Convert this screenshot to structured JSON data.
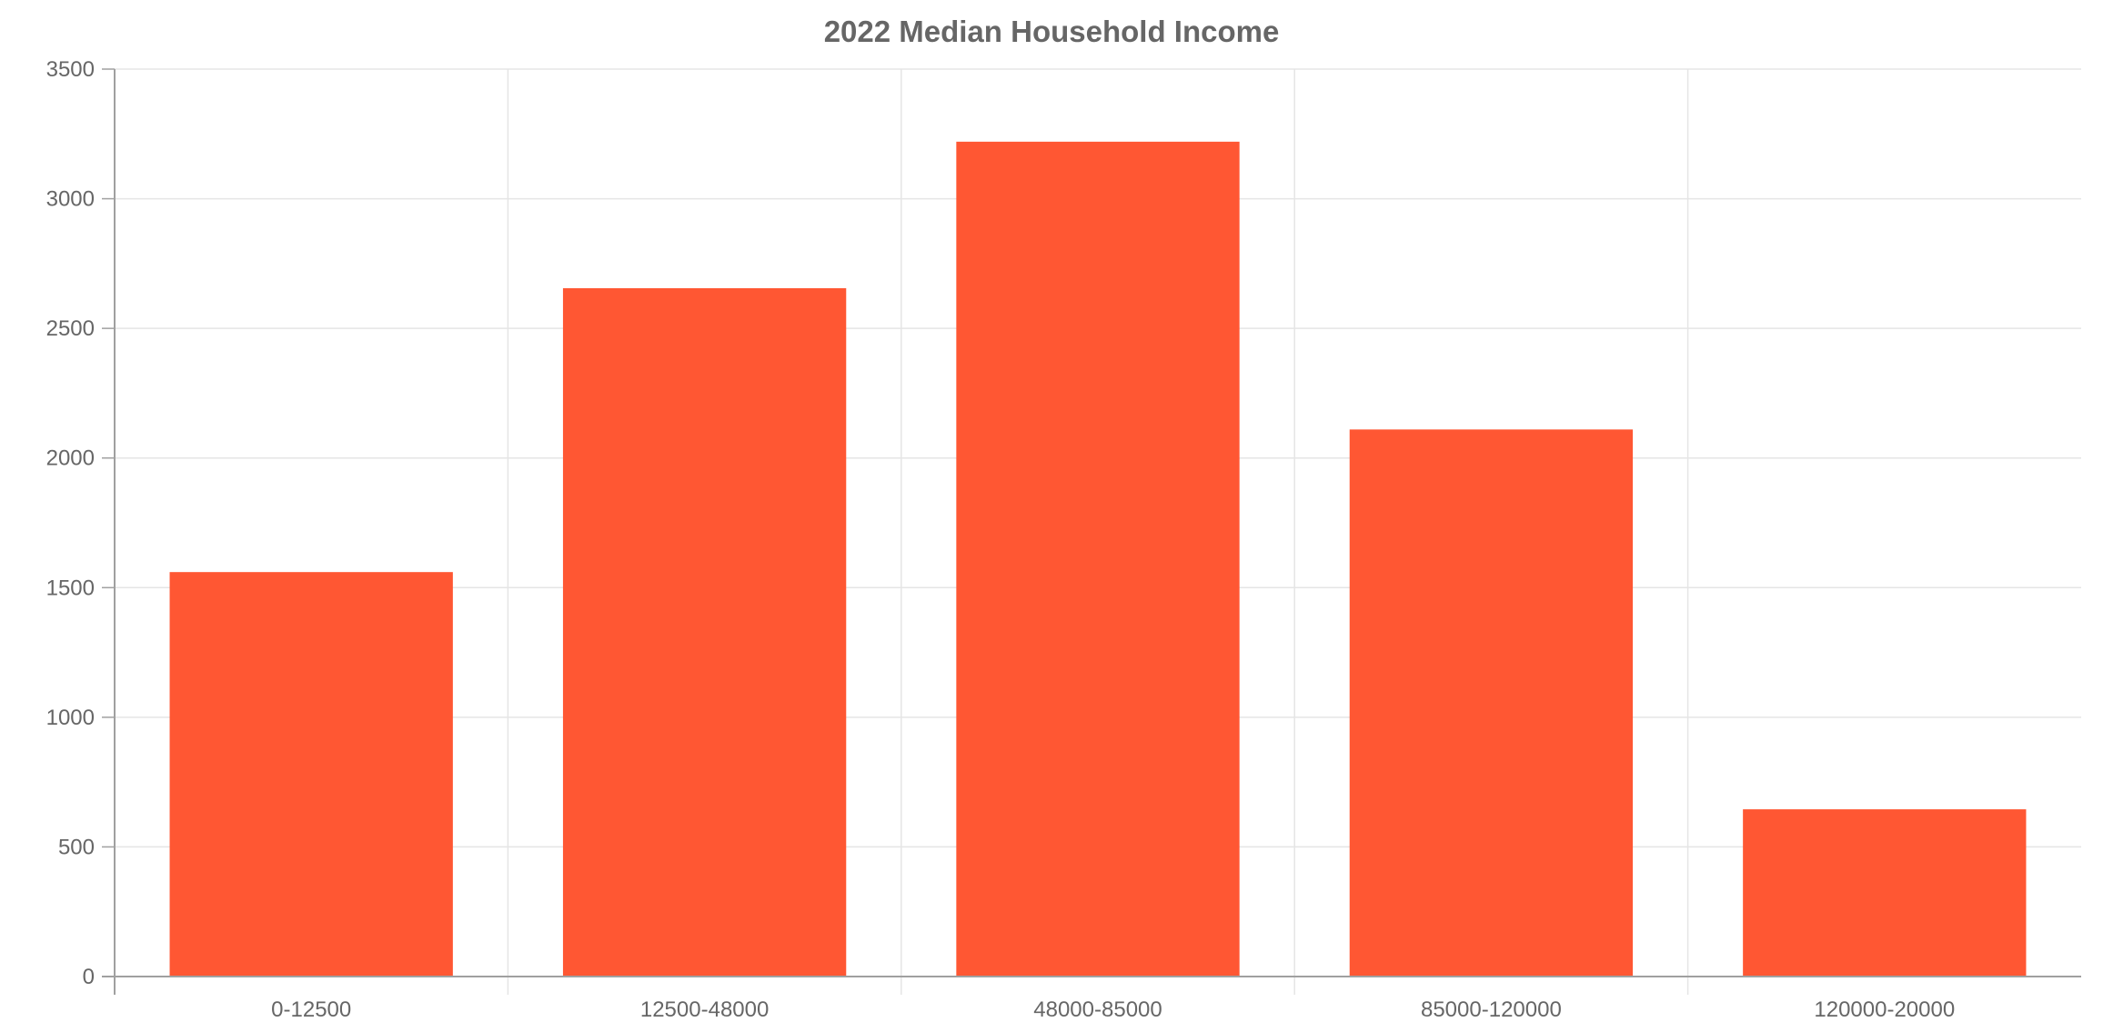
{
  "chart_data": {
    "type": "bar",
    "title": "2022 Median Household Income",
    "xlabel": "",
    "ylabel": "",
    "categories": [
      "0-12500",
      "12500-48000",
      "48000-85000",
      "85000-120000",
      "120000-20000"
    ],
    "values": [
      1560,
      2655,
      3220,
      2110,
      645
    ],
    "ylim": [
      0,
      3500
    ],
    "yticks": [
      0,
      500,
      1000,
      1500,
      2000,
      2500,
      3000,
      3500
    ],
    "grid": true,
    "legend": "none",
    "colors": {
      "bar": "#FF5733",
      "grid": "#e5e5e5",
      "axis": "#a0a0a0",
      "text": "#666666"
    }
  }
}
